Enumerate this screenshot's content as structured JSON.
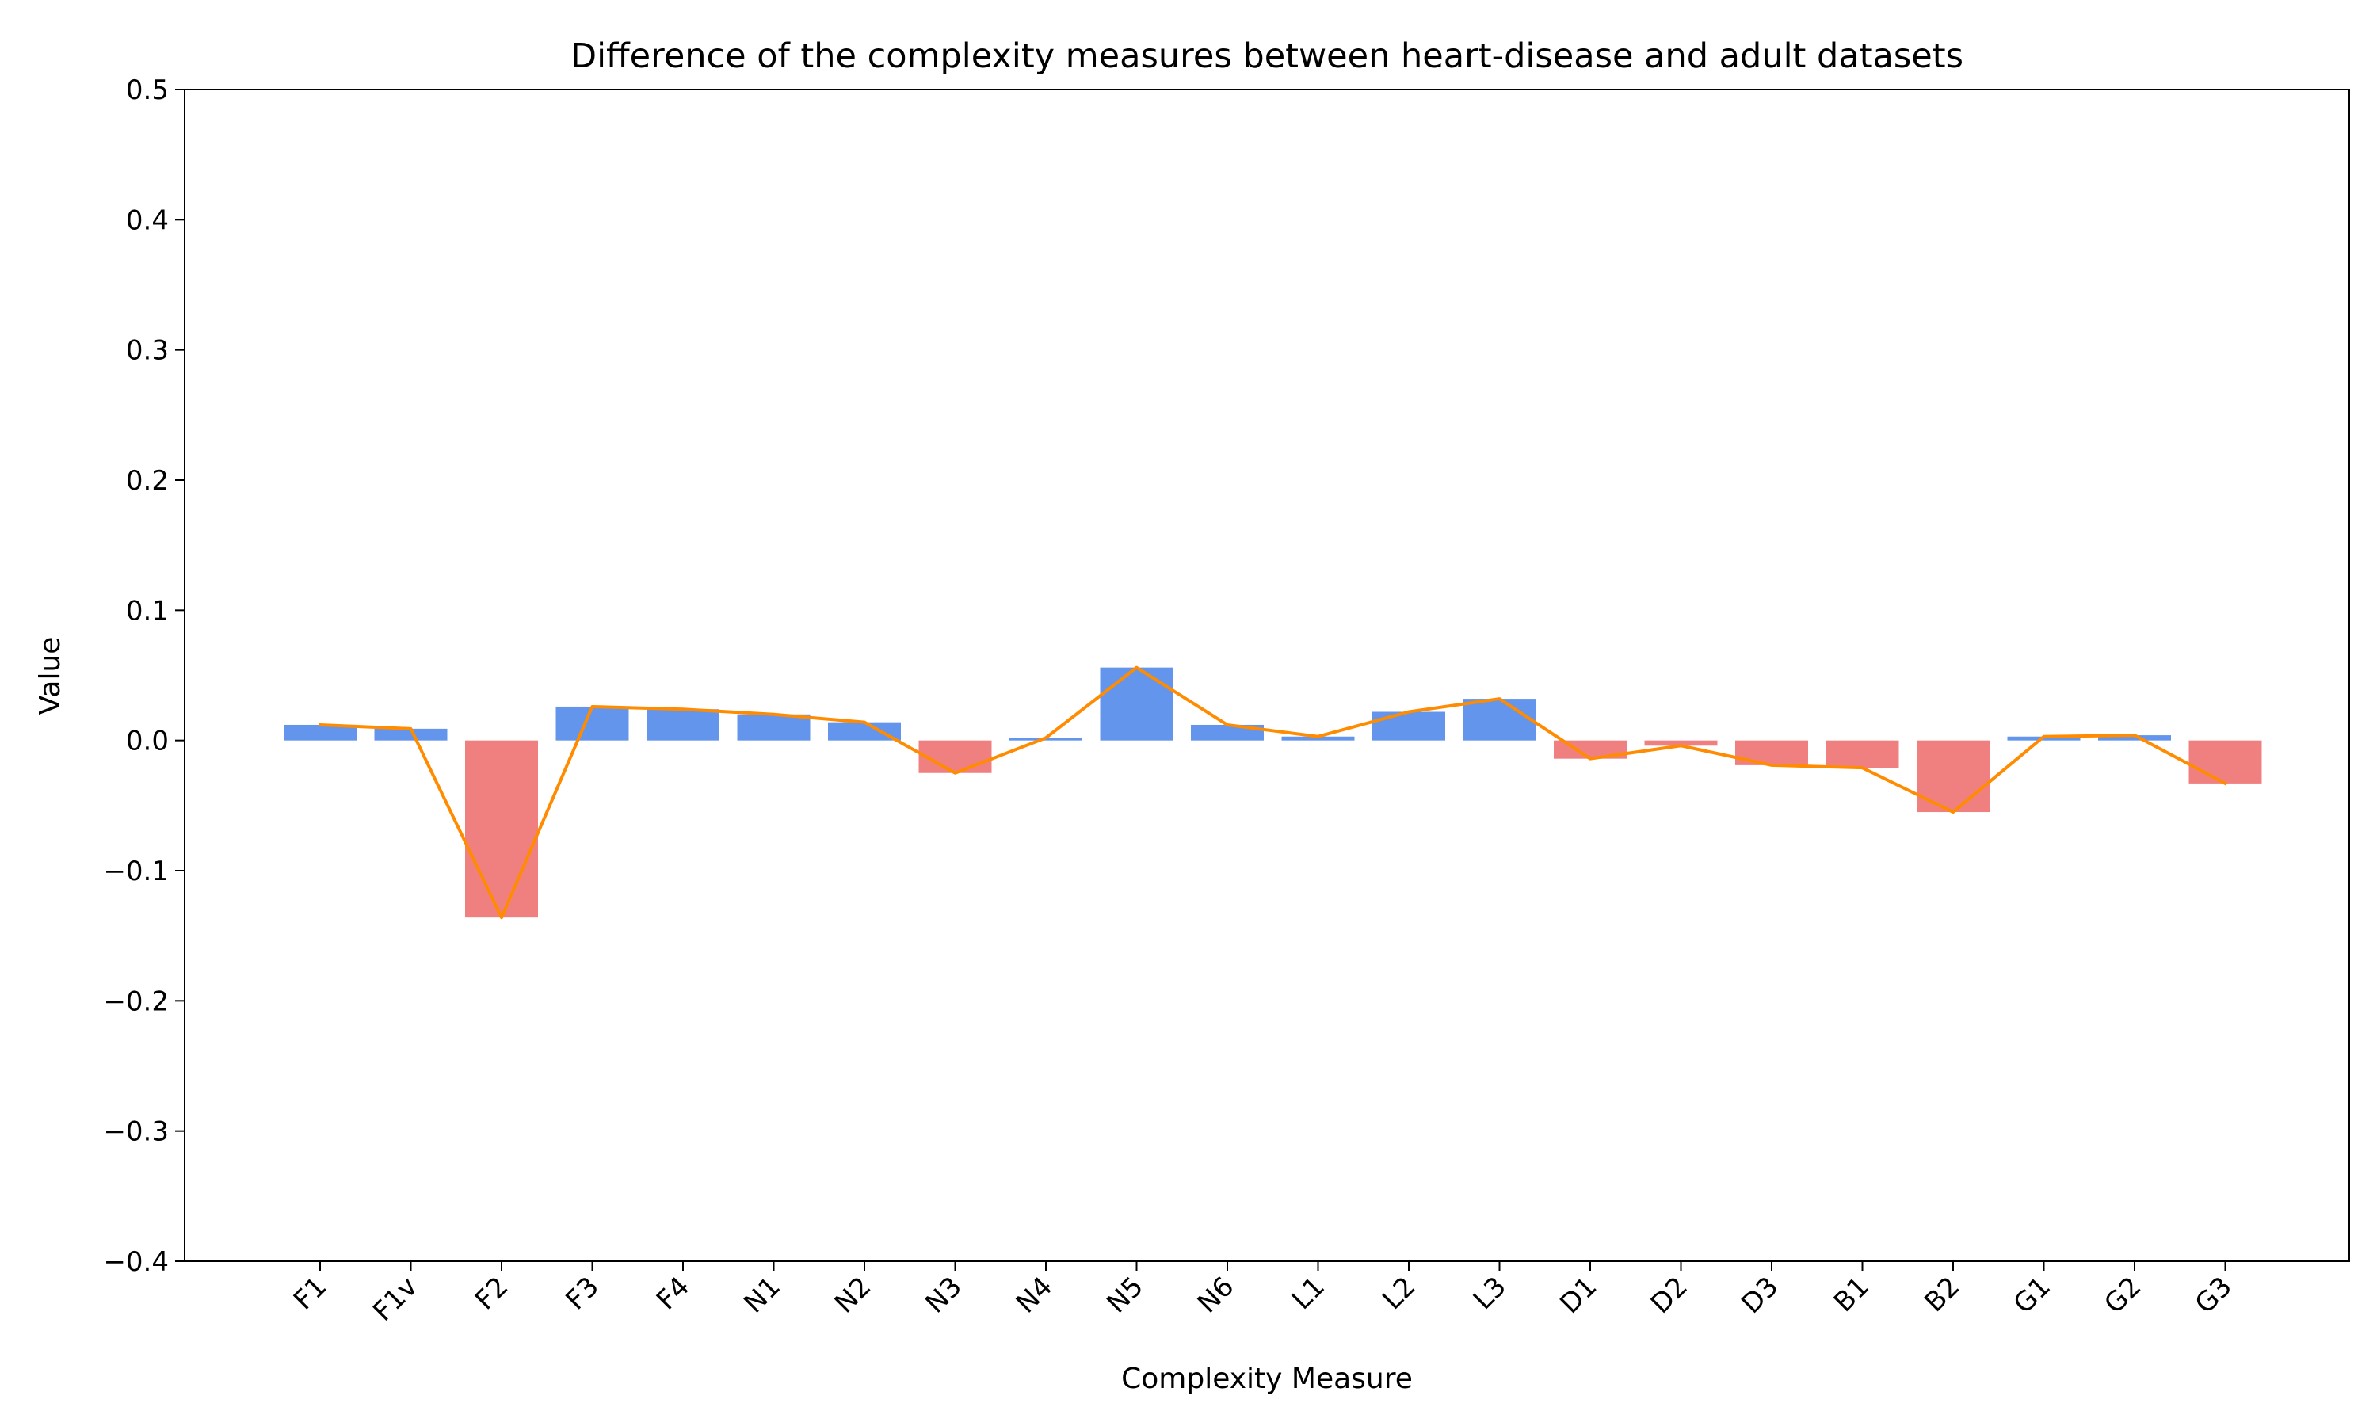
{
  "chart_data": {
    "type": "bar",
    "title": "Difference of the complexity measures between heart-disease and adult datasets",
    "xlabel": "Complexity Measure",
    "ylabel": "Value",
    "ylim": [
      -0.4,
      0.5
    ],
    "yticks": [
      "−0.4",
      "−0.3",
      "−0.2",
      "−0.1",
      "0.0",
      "0.1",
      "0.2",
      "0.3",
      "0.4",
      "0.5"
    ],
    "ytick_values": [
      -0.4,
      -0.3,
      -0.2,
      -0.1,
      0.0,
      0.1,
      0.2,
      0.3,
      0.4,
      0.5
    ],
    "categories": [
      "F1",
      "F1v",
      "F2",
      "F3",
      "F4",
      "N1",
      "N2",
      "N3",
      "N4",
      "N5",
      "N6",
      "L1",
      "L2",
      "L3",
      "D1",
      "D2",
      "D3",
      "B1",
      "B2",
      "G1",
      "G2",
      "G3"
    ],
    "values": [
      0.012,
      0.009,
      -0.136,
      0.026,
      0.024,
      0.02,
      0.014,
      -0.025,
      0.002,
      0.056,
      0.012,
      0.003,
      0.022,
      0.032,
      -0.014,
      -0.004,
      -0.019,
      -0.021,
      -0.055,
      0.003,
      0.004,
      -0.033
    ],
    "line_series_same_as_bars": true,
    "grid": false,
    "legend": "none",
    "colors": {
      "positive_bar": "#6495ED",
      "negative_bar": "#F08080",
      "line": "#FF8C00"
    }
  }
}
